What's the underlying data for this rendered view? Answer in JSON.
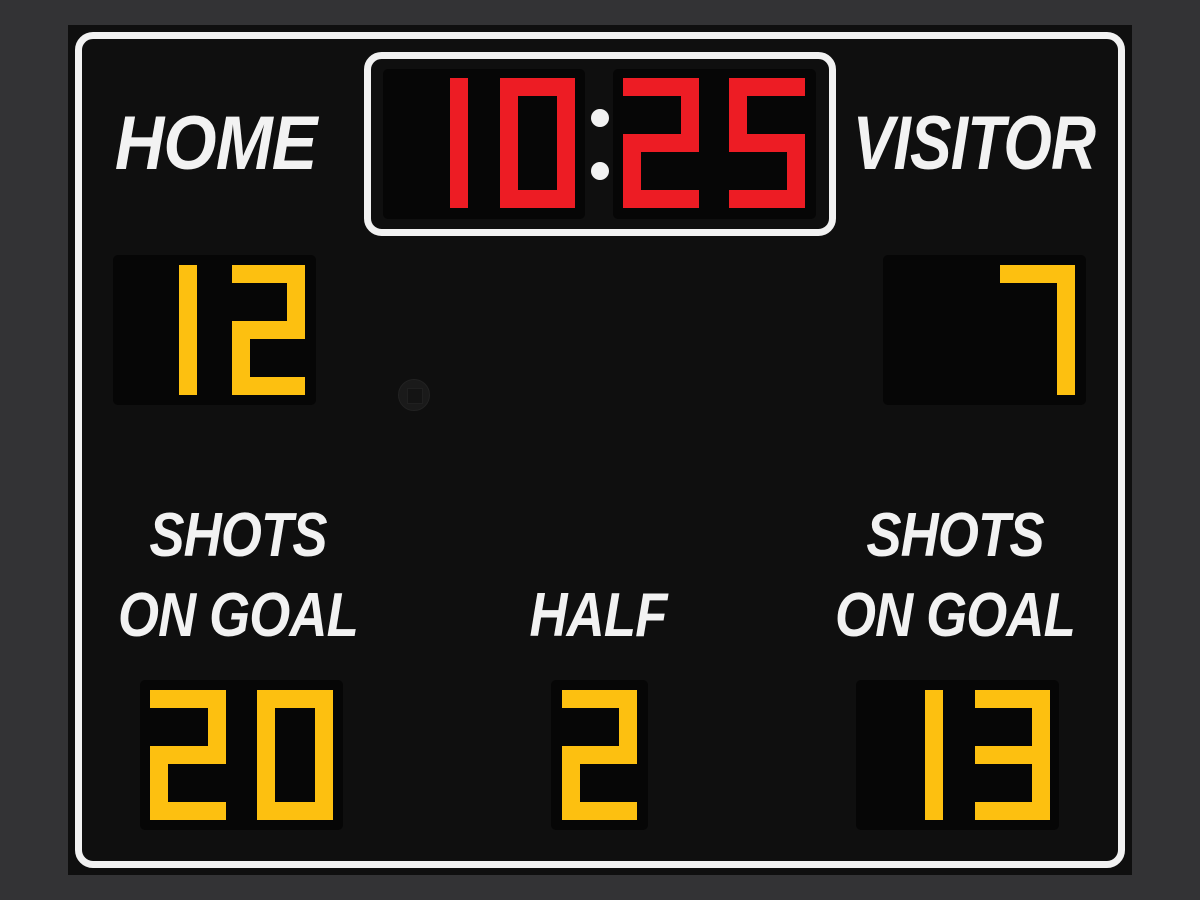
{
  "labels": {
    "home": "HOME",
    "visitor": "VISITOR",
    "shots_home": [
      "SHOTS",
      "ON GOAL"
    ],
    "shots_visitor": [
      "SHOTS",
      "ON GOAL"
    ],
    "half": "HALF"
  },
  "clock": {
    "minutes": "10",
    "seconds": "25",
    "color": "#ed1c24"
  },
  "scores": {
    "home": "12",
    "visitor": "7",
    "color": "#fdc010"
  },
  "shots_on_goal": {
    "home": "20",
    "visitor": "13"
  },
  "half": "2",
  "colors": {
    "board": "#0f0f0f",
    "frame": "#f2f2f2",
    "digit_panel": "#060606",
    "background": "#333335"
  }
}
